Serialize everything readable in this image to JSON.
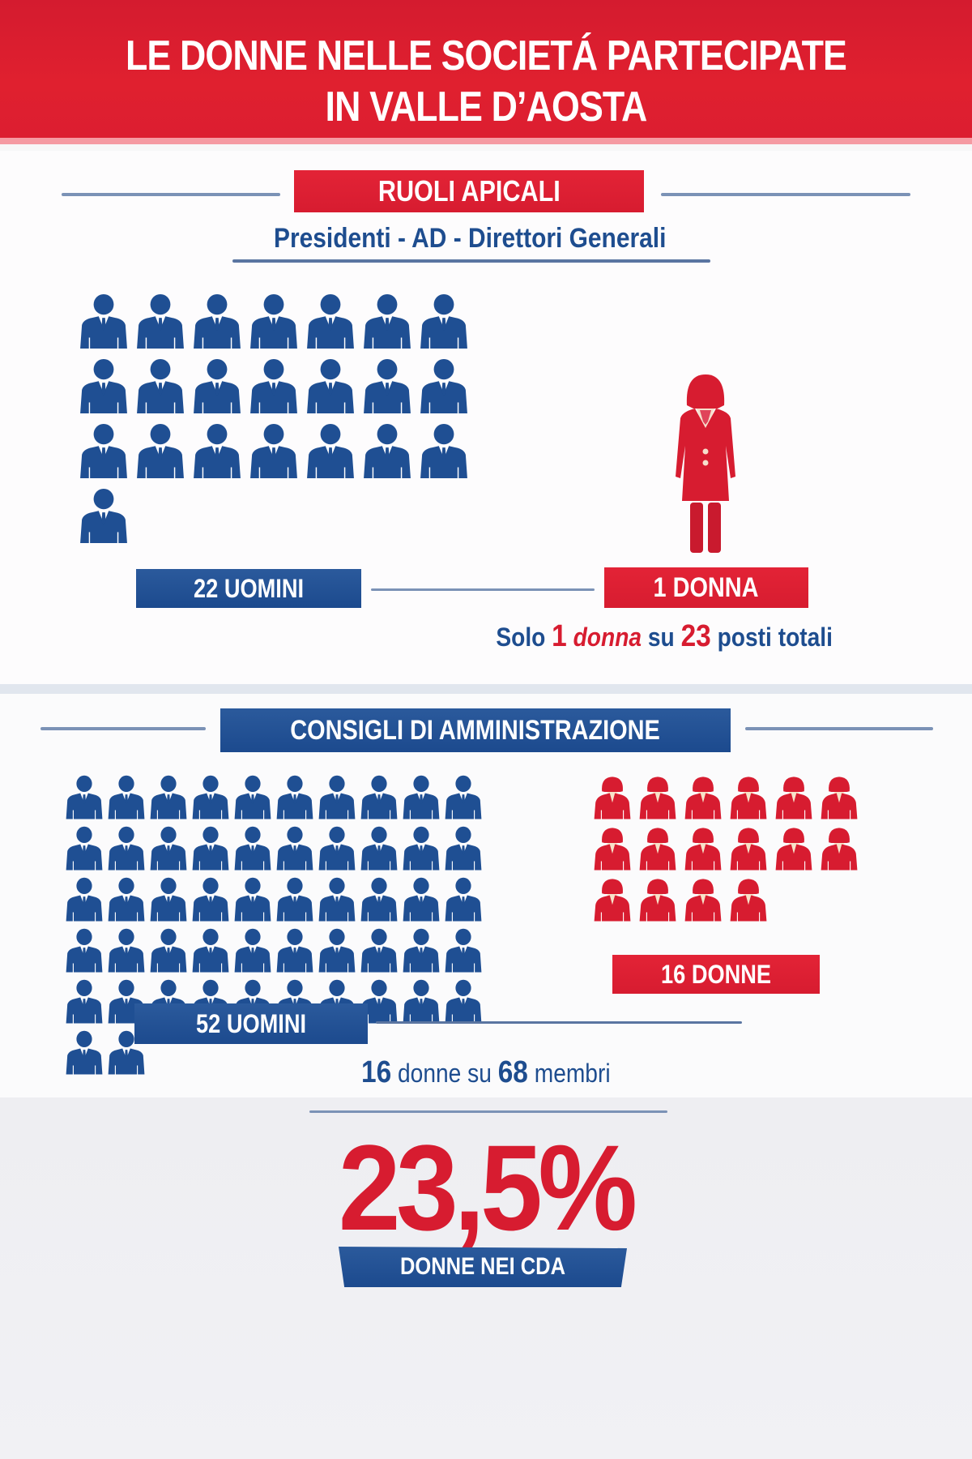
{
  "header": {
    "title_line1": "LE DONNE NELLE SOCIETÁ PARTECIPATE",
    "title_line2": "IN VALLE D’AOSTA"
  },
  "colors": {
    "red": "#d71c30",
    "blue": "#1e4d8f",
    "rule": "#7b92b6",
    "background": "#f7f7f8"
  },
  "ruoli_apicali": {
    "section_label": "RUOLI APICALI",
    "subtitle": "Presidenti - AD - Direttori Generali",
    "men_icon": "man-in-suit-icon",
    "woman_icon": "woman-in-suit-icon",
    "men_count": 22,
    "women_count": 1,
    "men_label": "22 UOMINI",
    "women_label": "1 DONNA",
    "summary": {
      "part1": "Solo",
      "num1": "1",
      "part2": "donna",
      "part3": "su",
      "num2": "23",
      "part4": "posti totali"
    }
  },
  "consigli_amministrazione": {
    "section_label": "CONSIGLI DI AMMINISTRAZIONE",
    "men_icon": "man-in-suit-icon",
    "woman_icon": "woman-bust-icon",
    "men_count": 52,
    "women_count": 16,
    "men_label": "52 UOMINI",
    "women_label": "16 DONNE",
    "summary": {
      "num1": "16",
      "part1": "donne su",
      "num2": "68",
      "part2": "membri"
    }
  },
  "highlight": {
    "percentage": "23,5%",
    "label": "DONNE NEI CDA"
  },
  "chart_data": {
    "type": "pictogram",
    "title": "LE DONNE NELLE SOCIETÁ PARTECIPATE IN VALLE D’AOSTA",
    "groups": [
      {
        "name": "RUOLI APICALI",
        "subtitle": "Presidenti - AD - Direttori Generali",
        "categories": [
          "Uomini",
          "Donne"
        ],
        "values": [
          22,
          1
        ],
        "total": 23
      },
      {
        "name": "CONSIGLI DI AMMINISTRAZIONE",
        "categories": [
          "Uomini",
          "Donne"
        ],
        "values": [
          52,
          16
        ],
        "total": 68
      }
    ],
    "annotations": [
      "Solo 1 donna su 23 posti totali",
      "16 donne su 68 membri",
      "23,5% DONNE NEI CDA"
    ],
    "women_share_cda_percent": 23.5
  }
}
